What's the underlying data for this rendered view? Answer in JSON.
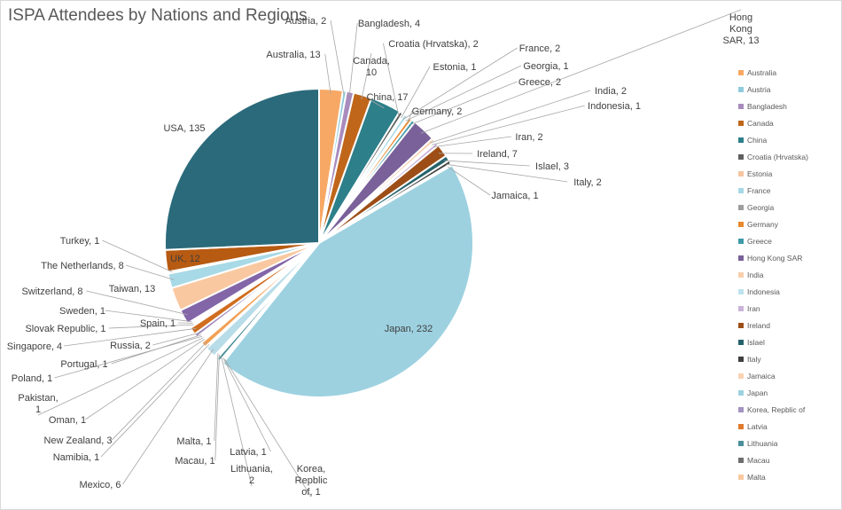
{
  "chart_data": {
    "type": "pie",
    "title": "ISPA Attendees by Nations and Regions",
    "legend_placement": "right",
    "slices": [
      {
        "name": "Australia",
        "value": 13,
        "label": "Australia, 13",
        "color": "#f7a864"
      },
      {
        "name": "Austria",
        "value": 2,
        "label": "Austria, 2",
        "color": "#8fcbdc"
      },
      {
        "name": "Bangladesh",
        "value": 4,
        "label": "Bangladesh, 4",
        "color": "#a98bbd"
      },
      {
        "name": "Canada",
        "value": 10,
        "label": "Canada, 10",
        "color": "#c0661a"
      },
      {
        "name": "China",
        "value": 17,
        "label": "China, 17",
        "color": "#2d7f8a"
      },
      {
        "name": "Croatia (Hrvatska)",
        "value": 2,
        "label": "Croatia (Hrvatska), 2",
        "color": "#5f5f5f"
      },
      {
        "name": "Estonia",
        "value": 1,
        "label": "Estonia, 1",
        "color": "#f6c5a1"
      },
      {
        "name": "France",
        "value": 2,
        "label": "France, 2",
        "color": "#a7d8e6"
      },
      {
        "name": "Georgia",
        "value": 1,
        "label": "Georgia, 1",
        "color": "#9e9e9e"
      },
      {
        "name": "Germany",
        "value": 2,
        "label": "Germany, 2",
        "color": "#e8892e"
      },
      {
        "name": "Greece",
        "value": 2,
        "label": "Greece, 2",
        "color": "#3e9aa6"
      },
      {
        "name": "Hong Kong SAR",
        "value": 13,
        "label": "Hong Kong SAR, 13",
        "color": "#7a619a"
      },
      {
        "name": "India",
        "value": 2,
        "label": "India, 2",
        "color": "#f8cfad"
      },
      {
        "name": "Indonesia",
        "value": 1,
        "label": "Indonesia, 1",
        "color": "#bfe3ee"
      },
      {
        "name": "Iran",
        "value": 2,
        "label": "Iran, 2",
        "color": "#c9b3d8"
      },
      {
        "name": "Ireland",
        "value": 7,
        "label": "Ireland, 7",
        "color": "#9d4e16"
      },
      {
        "name": "Islael",
        "value": 3,
        "label": "Islael, 3",
        "color": "#25636b"
      },
      {
        "name": "Italy",
        "value": 2,
        "label": "Italy, 2",
        "color": "#3f3f3f"
      },
      {
        "name": "Jamaica",
        "value": 1,
        "label": "Jamaica, 1",
        "color": "#f9d3b3"
      },
      {
        "name": "Japan",
        "value": 232,
        "label": "Japan, 232",
        "color": "#9dd1e0"
      },
      {
        "name": "Korea, Repblic of",
        "value": 1,
        "label": "Korea, Repblic of, 1",
        "color": "#a394c2"
      },
      {
        "name": "Latvia",
        "value": 1,
        "label": "Latvia, 1",
        "color": "#e07a2c"
      },
      {
        "name": "Lithuania",
        "value": 2,
        "label": "Lithuania, 2",
        "color": "#4b8f99"
      },
      {
        "name": "Macau",
        "value": 1,
        "label": "Macau, 1",
        "color": "#6d6d6d"
      },
      {
        "name": "Malta",
        "value": 1,
        "label": "Malta, 1",
        "color": "#f8c9a0"
      },
      {
        "name": "Mexico",
        "value": 6,
        "label": "Mexico, 6",
        "color": "#b8dde9"
      },
      {
        "name": "Namibia",
        "value": 1,
        "label": "Namibia, 1",
        "color": "#b3a3cc"
      },
      {
        "name": "New Zealand",
        "value": 3,
        "label": "New Zealand, 3",
        "color": "#f2a055"
      },
      {
        "name": "Oman",
        "value": 1,
        "label": "Oman, 1",
        "color": "#5aa8b3"
      },
      {
        "name": "Pakistan",
        "value": 1,
        "label": "Pakistan, 1",
        "color": "#8a8a8a"
      },
      {
        "name": "Poland",
        "value": 1,
        "label": "Poland, 1",
        "color": "#f5b98c"
      },
      {
        "name": "Portugal",
        "value": 1,
        "label": "Portugal, 1",
        "color": "#a2d4e2"
      },
      {
        "name": "Russia",
        "value": 2,
        "label": "Russia, 2",
        "color": "#9a83b8"
      },
      {
        "name": "Singapore",
        "value": 4,
        "label": "Singapore, 4",
        "color": "#d06d1f"
      },
      {
        "name": "Slovak Republic",
        "value": 1,
        "label": "Slovak Republic, 1",
        "color": "#337a84"
      },
      {
        "name": "Spain",
        "value": 1,
        "label": "Spain, 1",
        "color": "#f7c29b"
      },
      {
        "name": "Sweden",
        "value": 1,
        "label": "Sweden, 1",
        "color": "#93cbdb"
      },
      {
        "name": "Switzerland",
        "value": 8,
        "label": "Switzerland, 8",
        "color": "#8366a8"
      },
      {
        "name": "Taiwan",
        "value": 13,
        "label": "Taiwan, 13",
        "color": "#f9c8a0"
      },
      {
        "name": "The Netherlands",
        "value": 8,
        "label": "The Netherlands, 8",
        "color": "#a8d9e6"
      },
      {
        "name": "Turkey",
        "value": 1,
        "label": "Turkey, 1",
        "color": "#9c8bbf"
      },
      {
        "name": "UK",
        "value": 12,
        "label": "UK, 12",
        "color": "#b75a12"
      },
      {
        "name": "USA",
        "value": 135,
        "label": "USA, 135",
        "color": "#2a6a7a"
      }
    ],
    "legend_entries": [
      {
        "name": "Australia",
        "color": "#f7a864"
      },
      {
        "name": "Austria",
        "color": "#8fcbdc"
      },
      {
        "name": "Bangladesh",
        "color": "#a98bbd"
      },
      {
        "name": "Canada",
        "color": "#c0661a"
      },
      {
        "name": "China",
        "color": "#2d7f8a"
      },
      {
        "name": "Croatia (Hrvatska)",
        "color": "#5f5f5f"
      },
      {
        "name": "Estonia",
        "color": "#f6c5a1"
      },
      {
        "name": "France",
        "color": "#a7d8e6"
      },
      {
        "name": "Georgia",
        "color": "#9e9e9e"
      },
      {
        "name": "Germany",
        "color": "#e8892e"
      },
      {
        "name": "Greece",
        "color": "#3e9aa6"
      },
      {
        "name": "Hong Kong SAR",
        "color": "#7a619a"
      },
      {
        "name": "India",
        "color": "#f8cfad"
      },
      {
        "name": "Indonesia",
        "color": "#bfe3ee"
      },
      {
        "name": "Iran",
        "color": "#c9b3d8"
      },
      {
        "name": "Ireland",
        "color": "#9d4e16"
      },
      {
        "name": "Islael",
        "color": "#25636b"
      },
      {
        "name": "Italy",
        "color": "#3f3f3f"
      },
      {
        "name": "Jamaica",
        "color": "#f9d3b3"
      },
      {
        "name": "Japan",
        "color": "#9dd1e0"
      },
      {
        "name": "Korea, Repblic of",
        "color": "#a394c2"
      },
      {
        "name": "Latvia",
        "color": "#e07a2c"
      },
      {
        "name": "Lithuania",
        "color": "#4b8f99"
      },
      {
        "name": "Macau",
        "color": "#6d6d6d"
      },
      {
        "name": "Malta",
        "color": "#f8c9a0"
      }
    ]
  }
}
